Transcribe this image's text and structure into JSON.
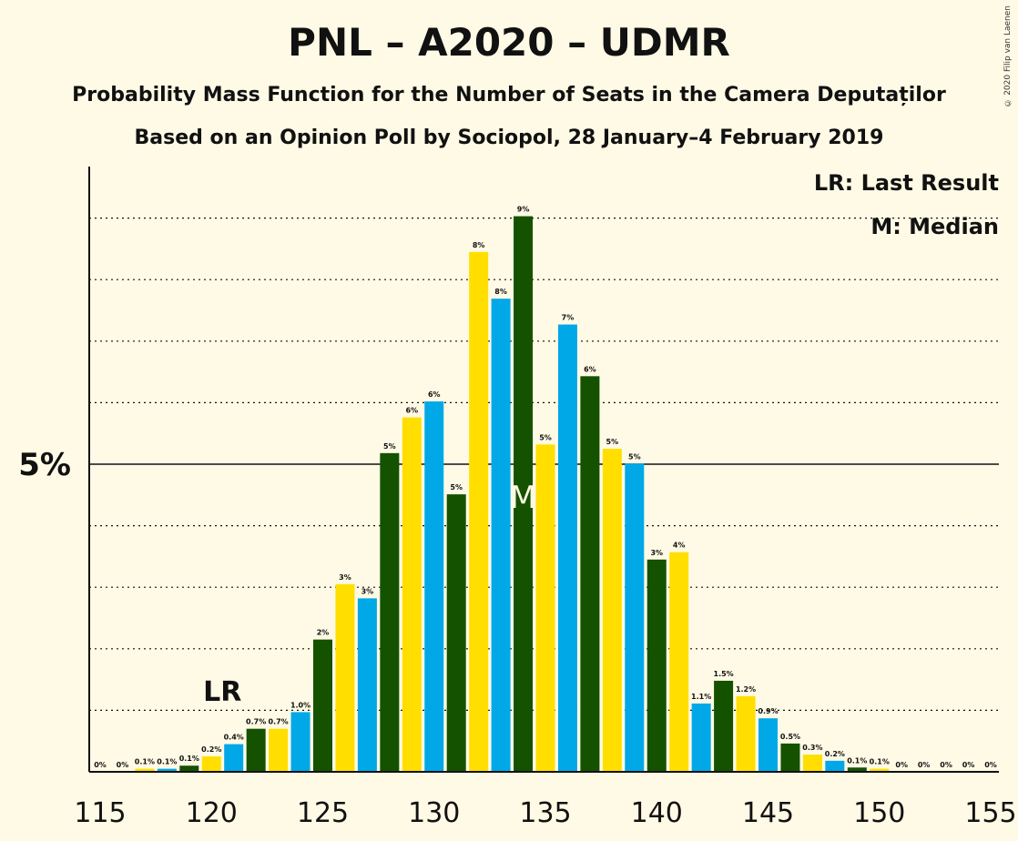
{
  "title": "PNL – A2020 – UDMR",
  "subtitle1": "Probability Mass Function for the Number of Seats in the Camera Deputaților",
  "subtitle2": "Based on an Opinion Poll by Sociopol, 28 January–4 February 2019",
  "copyright": "© 2020 Filip van Laenen",
  "legend": {
    "lr": "LR: Last Result",
    "m": "M: Median"
  },
  "markers": {
    "lr_label": "LR",
    "lr_seat": 120,
    "median_label": "M",
    "median_seat": 134
  },
  "colors": {
    "green": "#145200",
    "yellow": "#FFDE00",
    "blue": "#00A8E8",
    "background": "#FFFAE5",
    "median_text": "#FFFAE5"
  },
  "chart_data": {
    "type": "bar",
    "xlabel": "",
    "ylabel": "",
    "x_ticks": [
      "115",
      "120",
      "125",
      "130",
      "135",
      "140",
      "145",
      "150",
      "155"
    ],
    "y_tick_label": "5%",
    "y_tick_value": 5,
    "ylim": [
      0,
      9.8
    ],
    "grid": "dotted",
    "legend_position": "top-right",
    "bars": [
      {
        "seat": 115,
        "value": 0,
        "label": "0%",
        "color": "green"
      },
      {
        "seat": 116,
        "value": 0,
        "label": "0%",
        "color": "yellow"
      },
      {
        "seat": 117,
        "value": 0.05,
        "label": "0.1%",
        "color": "yellow"
      },
      {
        "seat": 118,
        "value": 0.05,
        "label": "0.1%",
        "color": "blue"
      },
      {
        "seat": 119,
        "value": 0.1,
        "label": "0.1%",
        "color": "green"
      },
      {
        "seat": 120,
        "value": 0.25,
        "label": "0.2%",
        "color": "yellow"
      },
      {
        "seat": 121,
        "value": 0.45,
        "label": "0.4%",
        "color": "blue"
      },
      {
        "seat": 122,
        "value": 0.7,
        "label": "0.7%",
        "color": "green"
      },
      {
        "seat": 123,
        "value": 0.7,
        "label": "0.7%",
        "color": "yellow"
      },
      {
        "seat": 124,
        "value": 0.97,
        "label": "1.0%",
        "color": "blue"
      },
      {
        "seat": 125,
        "value": 2.15,
        "label": "2%",
        "color": "green"
      },
      {
        "seat": 126,
        "value": 3.05,
        "label": "3%",
        "color": "yellow"
      },
      {
        "seat": 127,
        "value": 2.82,
        "label": "3%",
        "color": "blue"
      },
      {
        "seat": 128,
        "value": 5.18,
        "label": "5%",
        "color": "green"
      },
      {
        "seat": 129,
        "value": 5.76,
        "label": "6%",
        "color": "yellow"
      },
      {
        "seat": 130,
        "value": 6.02,
        "label": "6%",
        "color": "blue"
      },
      {
        "seat": 131,
        "value": 4.51,
        "label": "5%",
        "color": "green"
      },
      {
        "seat": 132,
        "value": 8.45,
        "label": "8%",
        "color": "yellow"
      },
      {
        "seat": 133,
        "value": 7.69,
        "label": "8%",
        "color": "blue"
      },
      {
        "seat": 134,
        "value": 9.03,
        "label": "9%",
        "color": "green"
      },
      {
        "seat": 135,
        "value": 5.32,
        "label": "5%",
        "color": "yellow"
      },
      {
        "seat": 136,
        "value": 7.27,
        "label": "7%",
        "color": "blue"
      },
      {
        "seat": 137,
        "value": 6.43,
        "label": "6%",
        "color": "green"
      },
      {
        "seat": 138,
        "value": 5.25,
        "label": "5%",
        "color": "yellow"
      },
      {
        "seat": 139,
        "value": 5.01,
        "label": "5%",
        "color": "blue"
      },
      {
        "seat": 140,
        "value": 3.45,
        "label": "3%",
        "color": "green"
      },
      {
        "seat": 141,
        "value": 3.57,
        "label": "4%",
        "color": "yellow"
      },
      {
        "seat": 142,
        "value": 1.11,
        "label": "1.1%",
        "color": "blue"
      },
      {
        "seat": 143,
        "value": 1.48,
        "label": "1.5%",
        "color": "green"
      },
      {
        "seat": 144,
        "value": 1.23,
        "label": "1.2%",
        "color": "yellow"
      },
      {
        "seat": 145,
        "value": 0.87,
        "label": "0.9%",
        "color": "blue"
      },
      {
        "seat": 146,
        "value": 0.46,
        "label": "0.5%",
        "color": "green"
      },
      {
        "seat": 147,
        "value": 0.28,
        "label": "0.3%",
        "color": "yellow"
      },
      {
        "seat": 148,
        "value": 0.18,
        "label": "0.2%",
        "color": "blue"
      },
      {
        "seat": 149,
        "value": 0.07,
        "label": "0.1%",
        "color": "green"
      },
      {
        "seat": 150,
        "value": 0.05,
        "label": "0.1%",
        "color": "yellow"
      },
      {
        "seat": 151,
        "value": 0,
        "label": "0%",
        "color": "blue"
      },
      {
        "seat": 152,
        "value": 0,
        "label": "0%",
        "color": "green"
      },
      {
        "seat": 153,
        "value": 0,
        "label": "0%",
        "color": "yellow"
      },
      {
        "seat": 154,
        "value": 0,
        "label": "0%",
        "color": "blue"
      },
      {
        "seat": 155,
        "value": 0,
        "label": "0%",
        "color": "green"
      }
    ]
  }
}
